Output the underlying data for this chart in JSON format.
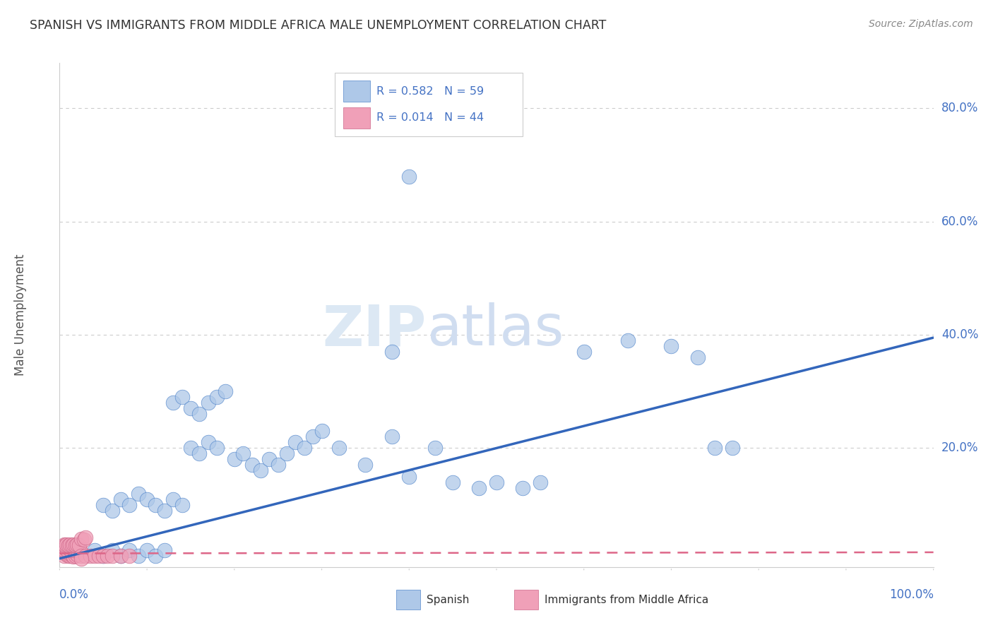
{
  "title": "SPANISH VS IMMIGRANTS FROM MIDDLE AFRICA MALE UNEMPLOYMENT CORRELATION CHART",
  "source": "Source: ZipAtlas.com",
  "ylabel": "Male Unemployment",
  "color_spanish": "#aec8e8",
  "color_spanish_edge": "#5588cc",
  "color_immigrants": "#f0a0b8",
  "color_immigrants_edge": "#cc6688",
  "color_line_spanish": "#3366bb",
  "color_line_immigrants": "#dd6688",
  "color_tick_label": "#4472c4",
  "background_color": "#ffffff",
  "grid_color": "#cccccc",
  "spine_color": "#cccccc",
  "spanish_x": [
    0.04,
    0.05,
    0.06,
    0.07,
    0.08,
    0.09,
    0.1,
    0.11,
    0.12,
    0.05,
    0.06,
    0.07,
    0.08,
    0.09,
    0.1,
    0.11,
    0.12,
    0.13,
    0.14,
    0.15,
    0.16,
    0.17,
    0.18,
    0.13,
    0.14,
    0.15,
    0.16,
    0.17,
    0.18,
    0.19,
    0.2,
    0.21,
    0.22,
    0.23,
    0.24,
    0.25,
    0.26,
    0.27,
    0.28,
    0.29,
    0.3,
    0.32,
    0.35,
    0.38,
    0.4,
    0.43,
    0.45,
    0.48,
    0.5,
    0.53,
    0.55,
    0.6,
    0.65,
    0.7,
    0.73,
    0.75,
    0.77,
    0.38,
    0.4
  ],
  "spanish_y": [
    0.02,
    0.01,
    0.02,
    0.01,
    0.02,
    0.01,
    0.02,
    0.01,
    0.02,
    0.1,
    0.09,
    0.11,
    0.1,
    0.12,
    0.11,
    0.1,
    0.09,
    0.11,
    0.1,
    0.2,
    0.19,
    0.21,
    0.2,
    0.28,
    0.29,
    0.27,
    0.26,
    0.28,
    0.29,
    0.3,
    0.18,
    0.19,
    0.17,
    0.16,
    0.18,
    0.17,
    0.19,
    0.21,
    0.2,
    0.22,
    0.23,
    0.2,
    0.17,
    0.22,
    0.15,
    0.2,
    0.14,
    0.13,
    0.14,
    0.13,
    0.14,
    0.37,
    0.39,
    0.38,
    0.36,
    0.2,
    0.2,
    0.37,
    0.68
  ],
  "immigrants_x": [
    0.005,
    0.008,
    0.01,
    0.01,
    0.012,
    0.013,
    0.015,
    0.016,
    0.018,
    0.02,
    0.005,
    0.007,
    0.009,
    0.011,
    0.013,
    0.015,
    0.017,
    0.019,
    0.021,
    0.023,
    0.005,
    0.006,
    0.008,
    0.01,
    0.012,
    0.014,
    0.016,
    0.018,
    0.02,
    0.022,
    0.025,
    0.03,
    0.035,
    0.04,
    0.045,
    0.05,
    0.055,
    0.06,
    0.07,
    0.08,
    0.025,
    0.028,
    0.03,
    0.025
  ],
  "immigrants_y": [
    0.01,
    0.012,
    0.01,
    0.015,
    0.01,
    0.012,
    0.01,
    0.008,
    0.01,
    0.012,
    0.02,
    0.022,
    0.02,
    0.022,
    0.02,
    0.022,
    0.02,
    0.022,
    0.02,
    0.022,
    0.03,
    0.028,
    0.03,
    0.028,
    0.03,
    0.028,
    0.03,
    0.028,
    0.03,
    0.028,
    0.01,
    0.01,
    0.01,
    0.01,
    0.01,
    0.01,
    0.01,
    0.01,
    0.01,
    0.01,
    0.04,
    0.038,
    0.042,
    0.005
  ],
  "line_sp_x0": 0.0,
  "line_sp_x1": 1.0,
  "line_sp_y0": 0.005,
  "line_sp_y1": 0.395,
  "line_im_x0": 0.0,
  "line_im_x1": 1.0,
  "line_im_y0": 0.014,
  "line_im_y1": 0.016,
  "xlim": [
    0.0,
    1.0
  ],
  "ylim": [
    -0.01,
    0.88
  ],
  "ytick_vals": [
    0.2,
    0.4,
    0.6,
    0.8
  ],
  "ytick_labels": [
    "20.0%",
    "40.0%",
    "60.0%",
    "80.0%"
  ]
}
